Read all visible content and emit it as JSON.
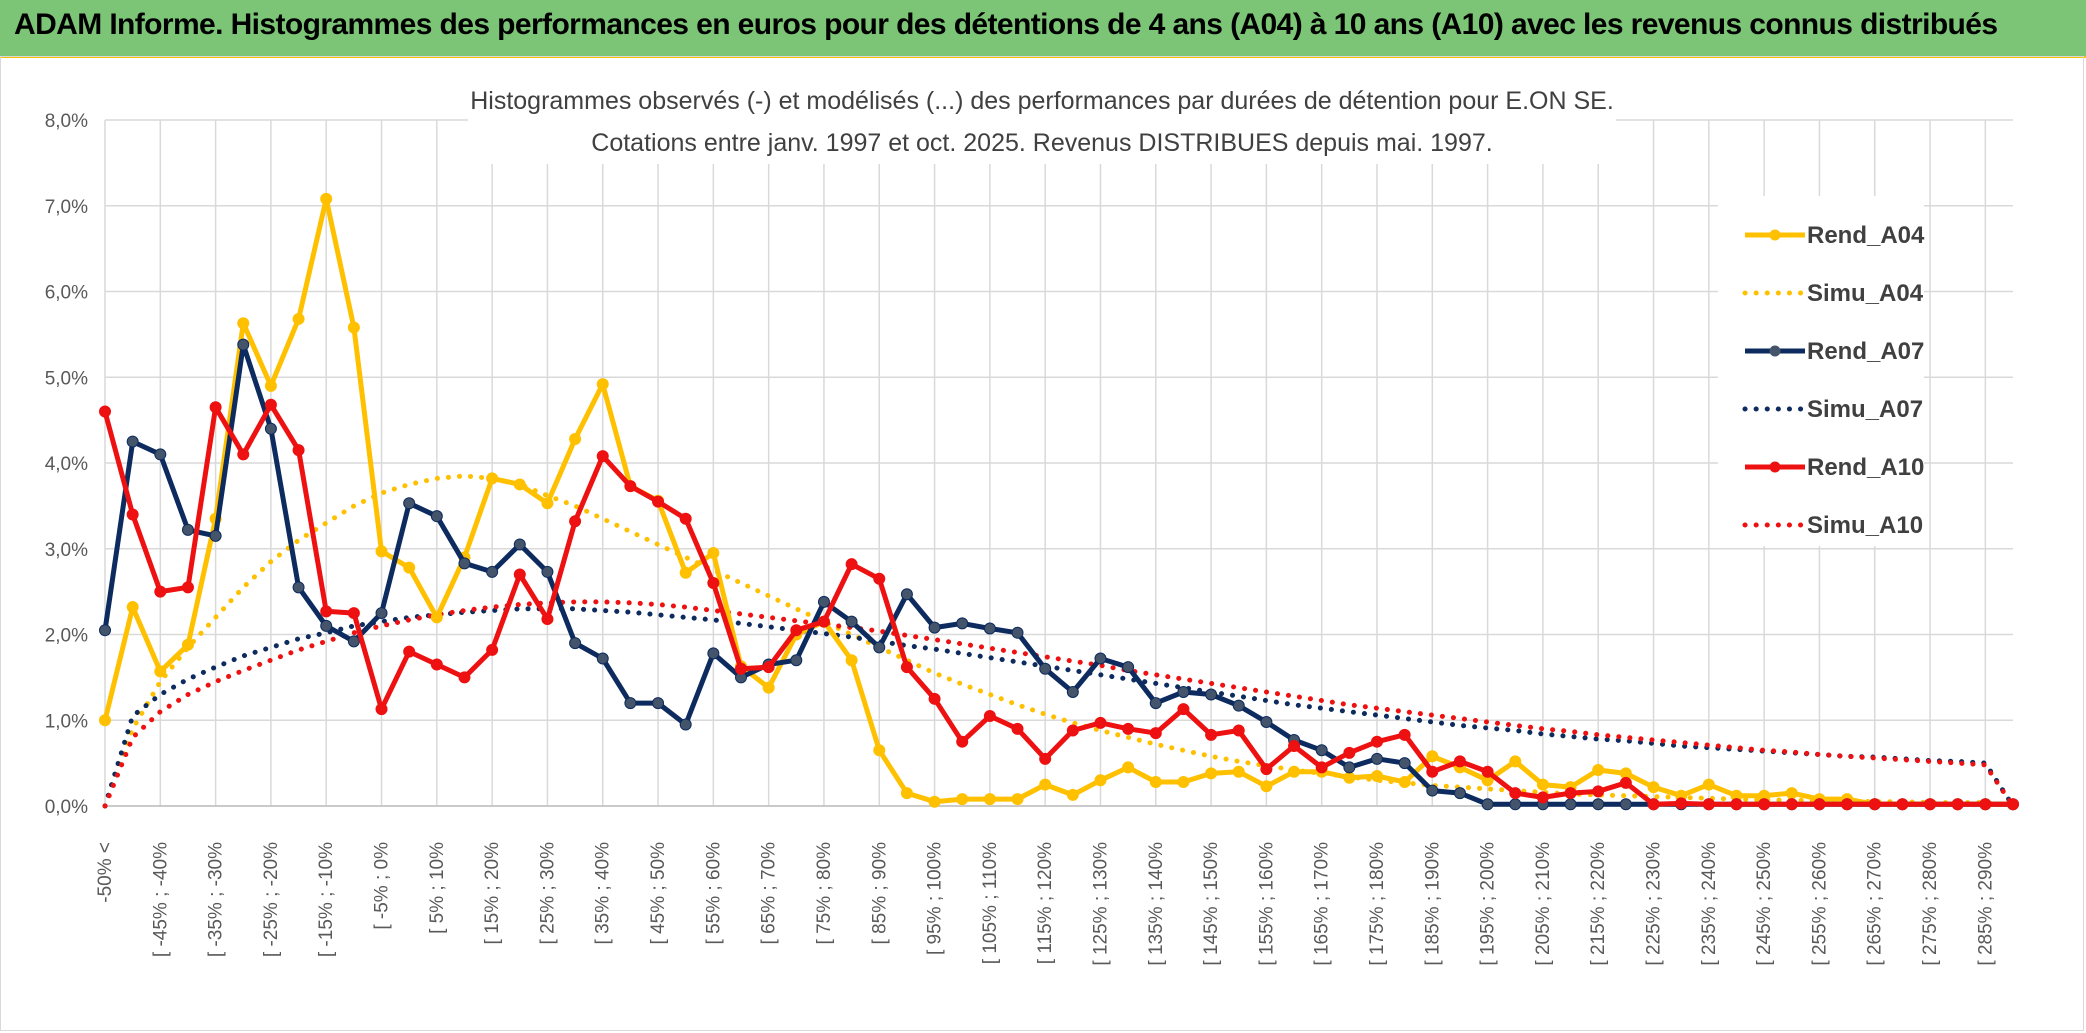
{
  "header": {
    "title": "ADAM Informe. Histogrammes des performances en euros pour des détentions de 4 ans (A04) à 10 ans (A10) avec les revenus connus distribués"
  },
  "chart_data": {
    "type": "line",
    "title": "Histogrammes observés (-) et modélisés (...) des performances par durées de détention pour E.ON SE.",
    "subtitle": "Cotations entre janv. 1997 et oct. 2025. Revenus DISTRIBUES depuis mai. 1997.",
    "xlabel": "",
    "ylabel": "",
    "ylim": [
      0,
      8
    ],
    "y_ticks": [
      "0,0%",
      "1,0%",
      "2,0%",
      "3,0%",
      "4,0%",
      "5,0%",
      "6,0%",
      "7,0%",
      "8,0%"
    ],
    "legend_position": "right",
    "grid": true,
    "x_tick_labels": [
      "-50% <",
      "[ -45% ; -40%",
      "[ -35% ; -30%",
      "[ -25% ; -20%",
      "[ -15% ; -10%",
      "[ -5% ; 0%",
      "[ 5% ; 10%",
      "[ 15% ; 20%",
      "[ 25% ; 30%",
      "[ 35% ; 40%",
      "[ 45% ; 50%",
      "[ 55% ; 60%",
      "[ 65% ; 70%",
      "[ 75% ; 80%",
      "[ 85% ; 90%",
      "[ 95% ; 100%",
      "[ 105% ; 110%",
      "[ 115% ; 120%",
      "[ 125% ; 130%",
      "[ 135% ; 140%",
      "[ 145% ; 150%",
      "[ 155% ; 160%",
      "[ 165% ; 170%",
      "[ 175% ; 180%",
      "[ 185% ; 190%",
      "[ 195% ; 200%",
      "[ 205% ; 210%",
      "[ 215% ; 220%",
      "[ 225% ; 230%",
      "[ 235% ; 240%",
      "[ 245% ; 250%",
      "[ 255% ; 260%",
      "[ 265% ; 270%",
      "[ 275% ; 280%",
      "[ 285% ; 290%"
    ],
    "num_bins": 70,
    "series": [
      {
        "name": "Rend_A04",
        "style": "solid",
        "color": "#ffc000",
        "values": [
          1.0,
          2.32,
          1.57,
          1.88,
          3.35,
          5.63,
          4.9,
          5.68,
          7.08,
          5.58,
          2.97,
          2.78,
          2.2,
          2.9,
          3.82,
          3.75,
          3.53,
          4.28,
          4.92,
          3.73,
          3.56,
          2.72,
          2.95,
          1.63,
          1.38,
          2.0,
          2.15,
          1.7,
          0.65,
          0.15,
          0.05,
          0.08,
          0.08,
          0.08,
          0.25,
          0.13,
          0.3,
          0.45,
          0.28,
          0.28,
          0.38,
          0.4,
          0.23,
          0.4,
          0.4,
          0.33,
          0.35,
          0.28,
          0.58,
          0.45,
          0.3,
          0.52,
          0.25,
          0.22,
          0.42,
          0.38,
          0.22,
          0.12,
          0.25,
          0.12,
          0.12,
          0.15,
          0.08,
          0.08,
          0.02,
          0.02,
          0.02,
          0.02,
          0.02,
          0.02
        ]
      },
      {
        "name": "Simu_A04",
        "style": "dotted",
        "color": "#ffc000",
        "values": [
          0.0,
          0.9,
          1.45,
          1.85,
          2.2,
          2.55,
          2.85,
          3.1,
          3.3,
          3.5,
          3.65,
          3.75,
          3.82,
          3.85,
          3.82,
          3.75,
          3.62,
          3.5,
          3.35,
          3.2,
          3.05,
          2.9,
          2.75,
          2.6,
          2.45,
          2.3,
          2.15,
          2.0,
          1.85,
          1.7,
          1.55,
          1.42,
          1.3,
          1.18,
          1.07,
          0.97,
          0.88,
          0.8,
          0.72,
          0.65,
          0.58,
          0.52,
          0.47,
          0.42,
          0.38,
          0.34,
          0.3,
          0.27,
          0.24,
          0.22,
          0.2,
          0.18,
          0.16,
          0.14,
          0.13,
          0.12,
          0.11,
          0.1,
          0.09,
          0.08,
          0.07,
          0.07,
          0.06,
          0.06,
          0.05,
          0.05,
          0.04,
          0.04,
          0.04,
          0.0
        ]
      },
      {
        "name": "Rend_A07",
        "style": "solid",
        "color": "#0d2b5e",
        "values": [
          2.05,
          4.25,
          4.1,
          3.22,
          3.15,
          5.38,
          4.4,
          2.55,
          2.1,
          1.92,
          2.25,
          3.53,
          3.38,
          2.83,
          2.73,
          3.05,
          2.73,
          1.9,
          1.72,
          1.2,
          1.2,
          0.95,
          1.78,
          1.5,
          1.65,
          1.7,
          2.38,
          2.15,
          1.85,
          2.47,
          2.08,
          2.13,
          2.07,
          2.02,
          1.6,
          1.33,
          1.72,
          1.62,
          1.2,
          1.33,
          1.3,
          1.17,
          0.98,
          0.77,
          0.65,
          0.45,
          0.55,
          0.5,
          0.18,
          0.15,
          0.02,
          0.02,
          0.02,
          0.02,
          0.02,
          0.02,
          0.02,
          0.02,
          0.02,
          0.02,
          0.02,
          0.02,
          0.02,
          0.02,
          0.02,
          0.02,
          0.02,
          0.02,
          0.02,
          0.02
        ]
      },
      {
        "name": "Simu_A07",
        "style": "dotted",
        "color": "#0d2b5e",
        "values": [
          0.0,
          1.05,
          1.3,
          1.48,
          1.62,
          1.75,
          1.85,
          1.95,
          2.02,
          2.1,
          2.15,
          2.2,
          2.23,
          2.26,
          2.28,
          2.3,
          2.3,
          2.3,
          2.28,
          2.26,
          2.23,
          2.2,
          2.17,
          2.13,
          2.09,
          2.05,
          2.01,
          1.97,
          1.92,
          1.87,
          1.83,
          1.78,
          1.73,
          1.68,
          1.63,
          1.58,
          1.53,
          1.48,
          1.43,
          1.38,
          1.33,
          1.28,
          1.23,
          1.18,
          1.14,
          1.1,
          1.06,
          1.02,
          0.98,
          0.94,
          0.91,
          0.88,
          0.84,
          0.81,
          0.78,
          0.76,
          0.73,
          0.7,
          0.68,
          0.66,
          0.64,
          0.62,
          0.6,
          0.58,
          0.57,
          0.55,
          0.53,
          0.52,
          0.5,
          0.0
        ]
      },
      {
        "name": "Rend_A10",
        "style": "solid",
        "color": "#ee1111",
        "values": [
          4.6,
          3.4,
          2.5,
          2.55,
          4.65,
          4.1,
          4.68,
          4.15,
          2.27,
          2.25,
          1.13,
          1.8,
          1.65,
          1.5,
          1.82,
          2.7,
          2.18,
          3.32,
          4.08,
          3.73,
          3.55,
          3.35,
          2.6,
          1.6,
          1.62,
          2.05,
          2.15,
          2.82,
          2.65,
          1.62,
          1.25,
          0.75,
          1.05,
          0.9,
          0.55,
          0.88,
          0.97,
          0.9,
          0.85,
          1.13,
          0.83,
          0.88,
          0.43,
          0.7,
          0.45,
          0.62,
          0.75,
          0.83,
          0.4,
          0.52,
          0.4,
          0.15,
          0.1,
          0.15,
          0.17,
          0.27,
          0.02,
          0.03,
          0.02,
          0.02,
          0.02,
          0.02,
          0.02,
          0.02,
          0.02,
          0.02,
          0.02,
          0.02,
          0.02,
          0.02
        ]
      },
      {
        "name": "Simu_A10",
        "style": "dotted",
        "color": "#ee1111",
        "values": [
          0.0,
          0.8,
          1.1,
          1.3,
          1.45,
          1.58,
          1.7,
          1.82,
          1.92,
          2.02,
          2.1,
          2.17,
          2.23,
          2.28,
          2.32,
          2.35,
          2.37,
          2.38,
          2.38,
          2.37,
          2.35,
          2.32,
          2.28,
          2.24,
          2.2,
          2.16,
          2.12,
          2.08,
          2.04,
          1.99,
          1.94,
          1.89,
          1.84,
          1.79,
          1.74,
          1.69,
          1.64,
          1.58,
          1.53,
          1.48,
          1.43,
          1.38,
          1.33,
          1.28,
          1.23,
          1.18,
          1.14,
          1.1,
          1.06,
          1.02,
          0.98,
          0.94,
          0.9,
          0.87,
          0.83,
          0.8,
          0.77,
          0.74,
          0.71,
          0.68,
          0.65,
          0.63,
          0.6,
          0.58,
          0.56,
          0.54,
          0.52,
          0.5,
          0.48,
          0.0
        ]
      }
    ]
  }
}
